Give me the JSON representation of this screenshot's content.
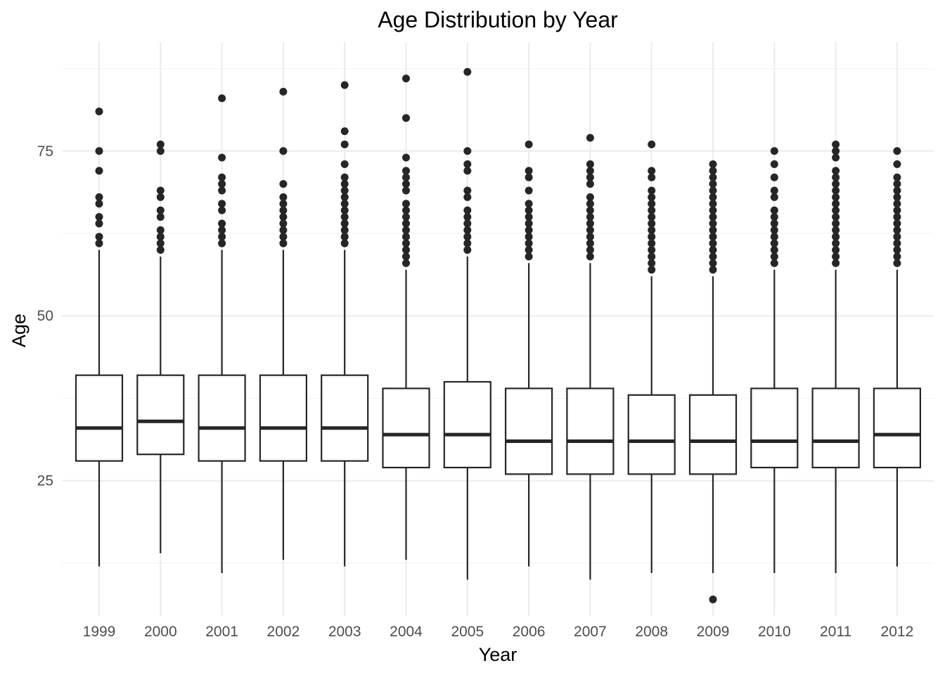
{
  "chart_data": {
    "type": "boxplot",
    "title": "Age Distribution by Year",
    "xlabel": "Year",
    "ylabel": "Age",
    "ylim": [
      4.5,
      91.5
    ],
    "y_ticks": [
      25,
      50,
      75
    ],
    "y_minor_ticks": [
      12.5,
      37.5,
      62.5,
      87.5
    ],
    "grid": true,
    "colors": {
      "box_line": "#262626",
      "box_fill": "#ffffff",
      "grid_major": "#ebebeb",
      "grid_minor": "#f4f4f4",
      "outlier": "#262626"
    },
    "categories": [
      "1999",
      "2000",
      "2001",
      "2002",
      "2003",
      "2004",
      "2005",
      "2006",
      "2007",
      "2008",
      "2009",
      "2010",
      "2011",
      "2012"
    ],
    "boxes": [
      {
        "year": "1999",
        "whisker_low": 12,
        "q1": 28,
        "median": 33,
        "q3": 41,
        "whisker_high": 60,
        "outliers": [
          61,
          62,
          64,
          65,
          67,
          68,
          72,
          75,
          81
        ]
      },
      {
        "year": "2000",
        "whisker_low": 14,
        "q1": 29,
        "median": 34,
        "q3": 41,
        "whisker_high": 59,
        "outliers": [
          60,
          61,
          62,
          63,
          65,
          66,
          68,
          69,
          75,
          76
        ]
      },
      {
        "year": "2001",
        "whisker_low": 11,
        "q1": 28,
        "median": 33,
        "q3": 41,
        "whisker_high": 60,
        "outliers": [
          61,
          62,
          63,
          64,
          66,
          67,
          69,
          70,
          71,
          74,
          83
        ]
      },
      {
        "year": "2002",
        "whisker_low": 13,
        "q1": 28,
        "median": 33,
        "q3": 41,
        "whisker_high": 60,
        "outliers": [
          61,
          62,
          63,
          64,
          65,
          66,
          67,
          68,
          70,
          75,
          84
        ]
      },
      {
        "year": "2003",
        "whisker_low": 12,
        "q1": 28,
        "median": 33,
        "q3": 41,
        "whisker_high": 60,
        "outliers": [
          61,
          62,
          63,
          64,
          65,
          66,
          67,
          68,
          69,
          70,
          71,
          73,
          76,
          78,
          85
        ]
      },
      {
        "year": "2004",
        "whisker_low": 13,
        "q1": 27,
        "median": 32,
        "q3": 39,
        "whisker_high": 57,
        "outliers": [
          58,
          59,
          60,
          61,
          62,
          63,
          64,
          65,
          66,
          67,
          69,
          70,
          71,
          72,
          74,
          80,
          86
        ]
      },
      {
        "year": "2005",
        "whisker_low": 10,
        "q1": 27,
        "median": 32,
        "q3": 40,
        "whisker_high": 59,
        "outliers": [
          60,
          61,
          62,
          63,
          64,
          65,
          66,
          68,
          69,
          72,
          73,
          75,
          87
        ]
      },
      {
        "year": "2006",
        "whisker_low": 12,
        "q1": 26,
        "median": 31,
        "q3": 39,
        "whisker_high": 58,
        "outliers": [
          59,
          60,
          61,
          62,
          63,
          64,
          65,
          66,
          67,
          69,
          71,
          72,
          76
        ]
      },
      {
        "year": "2007",
        "whisker_low": 10,
        "q1": 26,
        "median": 31,
        "q3": 39,
        "whisker_high": 58,
        "outliers": [
          59,
          60,
          61,
          62,
          63,
          64,
          65,
          66,
          67,
          68,
          70,
          71,
          72,
          73,
          77
        ]
      },
      {
        "year": "2008",
        "whisker_low": 11,
        "q1": 26,
        "median": 31,
        "q3": 38,
        "whisker_high": 56,
        "outliers": [
          57,
          58,
          59,
          60,
          61,
          62,
          63,
          64,
          65,
          66,
          67,
          68,
          69,
          71,
          72,
          76
        ]
      },
      {
        "year": "2009",
        "whisker_low": 11,
        "q1": 26,
        "median": 31,
        "q3": 38,
        "whisker_high": 56,
        "outliers": [
          7,
          57,
          58,
          59,
          60,
          61,
          62,
          63,
          64,
          65,
          66,
          67,
          68,
          69,
          70,
          71,
          72,
          73
        ]
      },
      {
        "year": "2010",
        "whisker_low": 11,
        "q1": 27,
        "median": 31,
        "q3": 39,
        "whisker_high": 57,
        "outliers": [
          58,
          59,
          60,
          61,
          62,
          63,
          64,
          65,
          66,
          68,
          69,
          71,
          73,
          75
        ]
      },
      {
        "year": "2011",
        "whisker_low": 11,
        "q1": 27,
        "median": 31,
        "q3": 39,
        "whisker_high": 57,
        "outliers": [
          58,
          59,
          60,
          61,
          62,
          63,
          64,
          65,
          66,
          67,
          68,
          69,
          70,
          71,
          72,
          74,
          75,
          76
        ]
      },
      {
        "year": "2012",
        "whisker_low": 12,
        "q1": 27,
        "median": 32,
        "q3": 39,
        "whisker_high": 57,
        "outliers": [
          58,
          59,
          60,
          61,
          62,
          63,
          64,
          65,
          66,
          67,
          68,
          69,
          70,
          71,
          73,
          75
        ]
      }
    ]
  }
}
